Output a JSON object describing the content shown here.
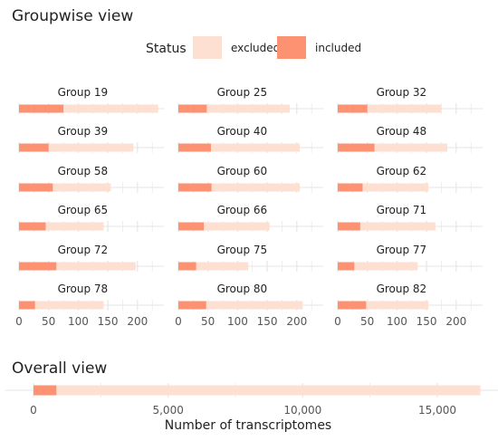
{
  "groupwise": {
    "title": "Groupwise view",
    "legend": {
      "title": "Status",
      "items": [
        {
          "label": "excluded",
          "color": "#fde0d2"
        },
        {
          "label": "included",
          "color": "#fc9272"
        }
      ]
    }
  },
  "overall": {
    "title": "Overall view",
    "xlabel": "Number of transcriptomes"
  },
  "chart_data": [
    {
      "type": "bar",
      "orientation": "horizontal",
      "stacked": true,
      "title": "Groupwise view",
      "facets": [
        {
          "name": "Group 19",
          "included": 75,
          "total": 235
        },
        {
          "name": "Group 25",
          "included": 48,
          "total": 188
        },
        {
          "name": "Group 32",
          "included": 50,
          "total": 175
        },
        {
          "name": "Group 39",
          "included": 50,
          "total": 193
        },
        {
          "name": "Group 40",
          "included": 55,
          "total": 205
        },
        {
          "name": "Group 48",
          "included": 62,
          "total": 185
        },
        {
          "name": "Group 58",
          "included": 57,
          "total": 155
        },
        {
          "name": "Group 60",
          "included": 56,
          "total": 205
        },
        {
          "name": "Group 62",
          "included": 42,
          "total": 153
        },
        {
          "name": "Group 65",
          "included": 45,
          "total": 143
        },
        {
          "name": "Group 66",
          "included": 43,
          "total": 154
        },
        {
          "name": "Group 71",
          "included": 38,
          "total": 165
        },
        {
          "name": "Group 72",
          "included": 63,
          "total": 197
        },
        {
          "name": "Group 75",
          "included": 30,
          "total": 118
        },
        {
          "name": "Group 77",
          "included": 28,
          "total": 135
        },
        {
          "name": "Group 78",
          "included": 27,
          "total": 143
        },
        {
          "name": "Group 80",
          "included": 47,
          "total": 210
        },
        {
          "name": "Group 82",
          "included": 48,
          "total": 153
        }
      ],
      "series": [
        {
          "name": "excluded"
        },
        {
          "name": "included"
        }
      ],
      "xticks": [
        0,
        50,
        100,
        150,
        200
      ],
      "xlim": [
        0,
        245
      ],
      "legend_position": "top",
      "grid": true
    },
    {
      "type": "bar",
      "orientation": "horizontal",
      "stacked": true,
      "title": "Overall view",
      "xlabel": "Number of transcriptomes",
      "included": 850,
      "total": 16600,
      "xticks": [
        0,
        5000,
        10000,
        15000
      ],
      "xtick_labels": [
        "0",
        "5,000",
        "10,000",
        "15,000"
      ],
      "xlim": [
        -1050,
        17400
      ],
      "grid": true
    }
  ]
}
